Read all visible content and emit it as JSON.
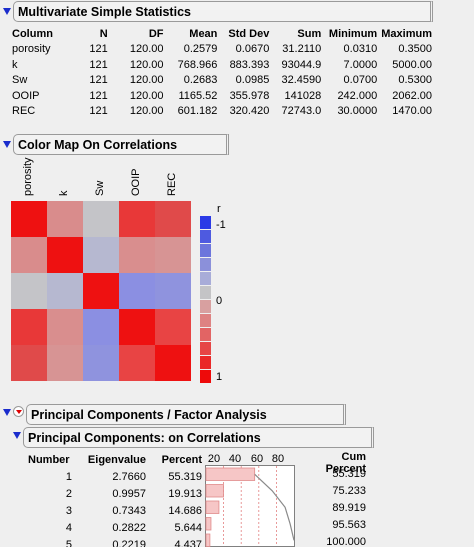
{
  "summary": {
    "title": "Multivariate Simple Statistics",
    "columns": [
      "Column",
      "N",
      "DF",
      "Mean",
      "Std Dev",
      "Sum",
      "Minimum",
      "Maximum"
    ],
    "rows": [
      [
        "porosity",
        "121",
        "120.00",
        "0.2579",
        "0.0670",
        "31.2110",
        "0.0310",
        "0.3500"
      ],
      [
        "k",
        "121",
        "120.00",
        "768.966",
        "883.393",
        "93044.9",
        "7.0000",
        "5000.00"
      ],
      [
        "Sw",
        "121",
        "120.00",
        "0.2683",
        "0.0985",
        "32.4590",
        "0.0700",
        "0.5300"
      ],
      [
        "OOIP",
        "121",
        "120.00",
        "1165.52",
        "355.978",
        "141028",
        "242.000",
        "2062.00"
      ],
      [
        "REC",
        "121",
        "120.00",
        "601.182",
        "320.420",
        "72743.0",
        "30.0000",
        "1470.00"
      ]
    ]
  },
  "color_map": {
    "title": "Color Map On Correlations",
    "variables": [
      "porosity",
      "k",
      "Sw",
      "OOIP",
      "REC"
    ],
    "legend_title": "r",
    "legend_labels": [
      "-1",
      "0",
      "1"
    ],
    "cell_colors": [
      [
        "#ee1111",
        "#d98c8c",
        "#c4c4c8",
        "#e83838",
        "#e04a4a"
      ],
      [
        "#d98c8c",
        "#ee1111",
        "#b6b8d0",
        "#d98e8e",
        "#d79494"
      ],
      [
        "#c4c4c8",
        "#b6b8d0",
        "#ee1111",
        "#8b8fe2",
        "#8f93de"
      ],
      [
        "#e83838",
        "#d98e8e",
        "#8b8fe2",
        "#ee1111",
        "#e84444"
      ],
      [
        "#e04a4a",
        "#d79494",
        "#8f93de",
        "#e84444",
        "#ee1111"
      ]
    ],
    "legend_colors": [
      "#2b3ae6",
      "#4e5ae0",
      "#6c75dc",
      "#8b90da",
      "#a8acd8",
      "#c4c4c6",
      "#d8a0a0",
      "#de8282",
      "#e26464",
      "#e64545",
      "#ea2828",
      "#ee0a0a"
    ]
  },
  "pca": {
    "title": "Principal Components / Factor Analysis",
    "sub_title": "Principal Components: on Correlations",
    "columns": [
      "Number",
      "Eigenvalue",
      "Percent",
      "Cum Percent"
    ],
    "scree_ticks": [
      "20",
      "40",
      "60",
      "80"
    ],
    "rows": [
      {
        "number": "1",
        "eigenvalue": "2.7660",
        "percent": "55.319",
        "cum": "55.319",
        "pct_value": 55.319,
        "cum_value": 55.319
      },
      {
        "number": "2",
        "eigenvalue": "0.9957",
        "percent": "19.913",
        "cum": "75.233",
        "pct_value": 19.913,
        "cum_value": 75.233
      },
      {
        "number": "3",
        "eigenvalue": "0.7343",
        "percent": "14.686",
        "cum": "89.919",
        "pct_value": 14.686,
        "cum_value": 89.919
      },
      {
        "number": "4",
        "eigenvalue": "0.2822",
        "percent": "5.644",
        "cum": "95.563",
        "pct_value": 5.644,
        "cum_value": 95.563
      },
      {
        "number": "5",
        "eigenvalue": "0.2219",
        "percent": "4.437",
        "cum": "100.000",
        "pct_value": 4.437,
        "cum_value": 100.0
      }
    ]
  }
}
